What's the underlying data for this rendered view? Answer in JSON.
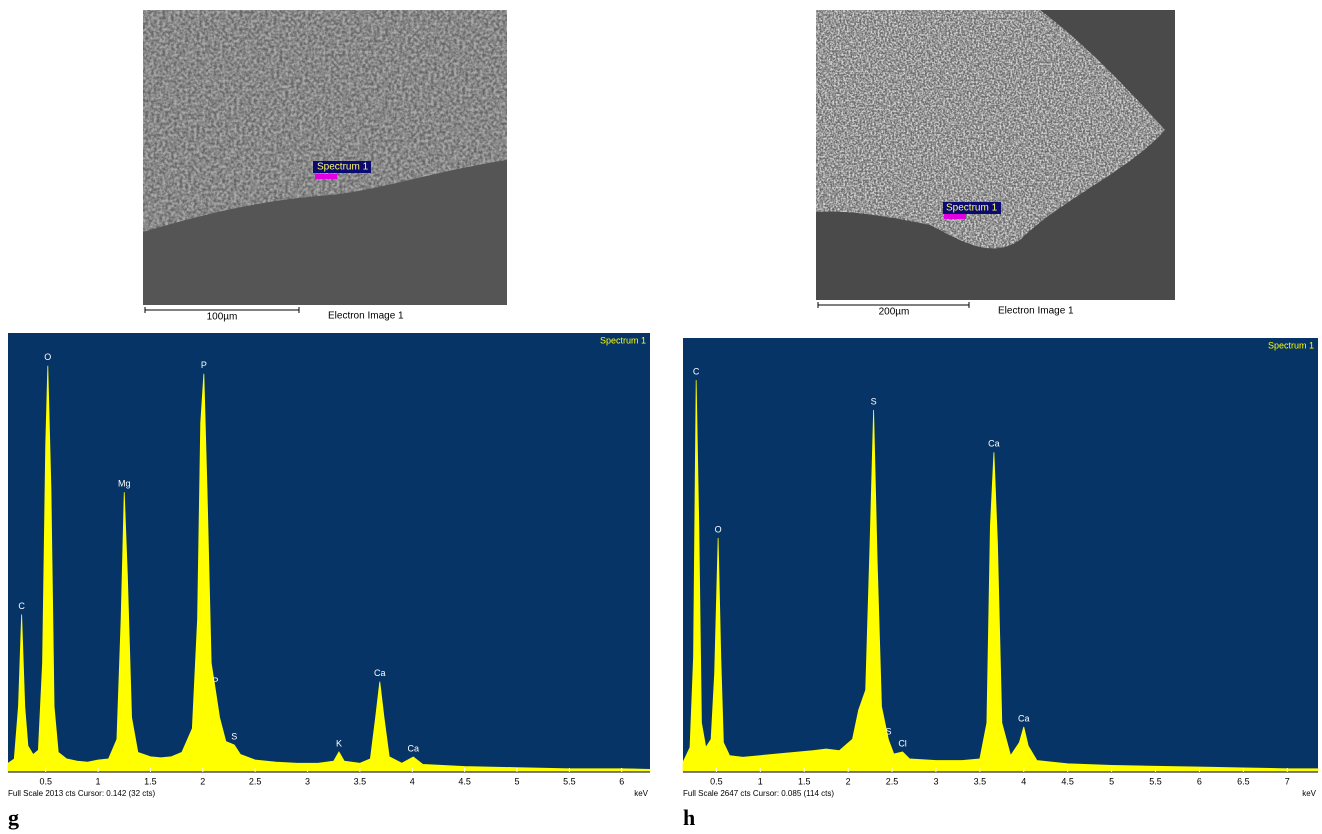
{
  "images": [
    {
      "marker": "Spectrum 1",
      "scale_bar": "100µm",
      "caption": "Electron Image 1"
    },
    {
      "marker": "Spectrum 1",
      "scale_bar": "200µm",
      "caption": "Electron Image 1"
    }
  ],
  "panel_labels": [
    "g",
    "h"
  ],
  "chart_data": [
    {
      "type": "area",
      "title": "Spectrum 1",
      "x_label": "keV",
      "footer": "Full Scale 2013 cts Cursor: 0.142 (32 cts)",
      "color": "#ffff00",
      "background": "#073466",
      "xlim": [
        0.14,
        6.27
      ],
      "xticks": [
        0.5,
        1,
        1.5,
        2,
        2.5,
        3,
        3.5,
        4,
        4.5,
        5,
        5.5,
        6
      ],
      "ylim": [
        0,
        2013
      ],
      "x": [
        0.14,
        0.2,
        0.24,
        0.27,
        0.3,
        0.33,
        0.38,
        0.43,
        0.47,
        0.5,
        0.52,
        0.55,
        0.58,
        0.62,
        0.7,
        0.8,
        0.9,
        1.0,
        1.1,
        1.18,
        1.22,
        1.25,
        1.28,
        1.32,
        1.38,
        1.5,
        1.6,
        1.7,
        1.8,
        1.9,
        1.95,
        1.98,
        2.01,
        2.04,
        2.08,
        2.12,
        2.16,
        2.22,
        2.3,
        2.36,
        2.5,
        2.7,
        2.9,
        3.1,
        3.25,
        3.3,
        3.35,
        3.5,
        3.6,
        3.65,
        3.69,
        3.73,
        3.78,
        3.9,
        4.01,
        4.1,
        4.5,
        5,
        5.5,
        6,
        6.27
      ],
      "values": [
        40,
        60,
        300,
        722,
        300,
        120,
        80,
        100,
        500,
        1500,
        1863,
        1300,
        300,
        90,
        60,
        50,
        45,
        55,
        60,
        150,
        700,
        1283,
        900,
        250,
        90,
        70,
        65,
        70,
        90,
        200,
        700,
        1600,
        1826,
        1300,
        500,
        377,
        250,
        140,
        124,
        80,
        55,
        45,
        40,
        40,
        50,
        92,
        50,
        40,
        60,
        250,
        414,
        250,
        70,
        40,
        69,
        35,
        25,
        20,
        15,
        15,
        12
      ],
      "annotations": [
        {
          "text": "C",
          "x": 0.27
        },
        {
          "text": "O",
          "x": 0.52
        },
        {
          "text": "Mg",
          "x": 1.25
        },
        {
          "text": "P",
          "x": 2.01
        },
        {
          "text": "P",
          "x": 2.12
        },
        {
          "text": "S",
          "x": 2.3
        },
        {
          "text": "K",
          "x": 3.3
        },
        {
          "text": "Ca",
          "x": 3.69
        },
        {
          "text": "Ca",
          "x": 4.01
        }
      ]
    },
    {
      "type": "area",
      "title": "Spectrum 1",
      "x_label": "keV",
      "footer": "Full Scale 2647 cts Cursor: 0.085 (114 cts)",
      "color": "#ffff00",
      "background": "#073466",
      "xlim": [
        0.12,
        7.35
      ],
      "xticks": [
        0.5,
        1,
        1.5,
        2,
        2.5,
        3,
        3.5,
        4,
        4.5,
        5,
        5.5,
        6,
        6.5,
        7
      ],
      "ylim": [
        0,
        2647
      ],
      "x": [
        0.12,
        0.2,
        0.24,
        0.27,
        0.3,
        0.33,
        0.38,
        0.44,
        0.48,
        0.52,
        0.55,
        0.58,
        0.65,
        0.8,
        1.0,
        1.2,
        1.4,
        1.6,
        1.75,
        1.9,
        2.05,
        2.12,
        2.2,
        2.25,
        2.29,
        2.33,
        2.38,
        2.46,
        2.52,
        2.62,
        2.7,
        3.0,
        3.3,
        3.5,
        3.58,
        3.62,
        3.66,
        3.7,
        3.75,
        3.85,
        3.95,
        4.0,
        4.05,
        4.15,
        4.5,
        5,
        5.5,
        6,
        6.5,
        7,
        7.35
      ],
      "values": [
        60,
        150,
        700,
        2390,
        1500,
        300,
        150,
        200,
        600,
        1427,
        700,
        180,
        100,
        90,
        100,
        110,
        120,
        130,
        140,
        130,
        200,
        378,
        500,
        1400,
        2208,
        1300,
        400,
        195,
        110,
        122,
        80,
        70,
        70,
        80,
        300,
        1500,
        1950,
        1400,
        300,
        100,
        180,
        275,
        160,
        70,
        50,
        40,
        35,
        30,
        25,
        20,
        20
      ],
      "annotations": [
        {
          "text": "C",
          "x": 0.27
        },
        {
          "text": "O",
          "x": 0.52
        },
        {
          "text": "S",
          "x": 2.29
        },
        {
          "text": "Ca",
          "x": 3.66
        },
        {
          "text": "S",
          "x": 2.46
        },
        {
          "text": "Cl",
          "x": 2.62
        },
        {
          "text": "Ca",
          "x": 4.0
        }
      ]
    }
  ]
}
